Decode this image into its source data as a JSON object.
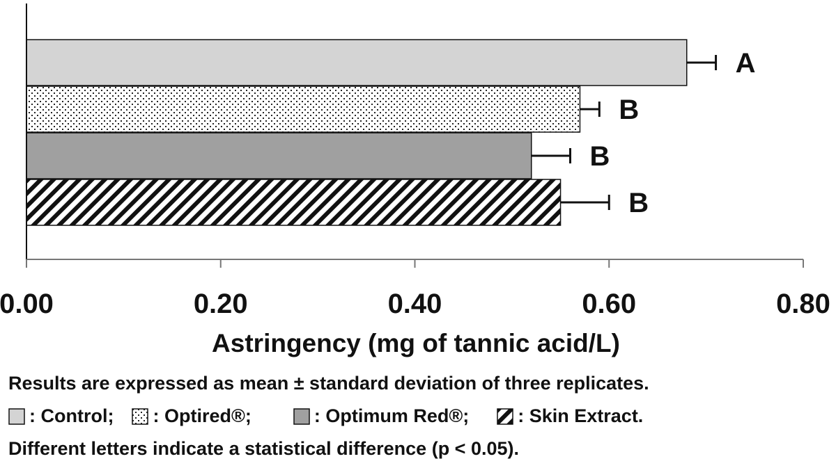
{
  "chart_data": {
    "type": "bar",
    "orientation": "horizontal",
    "categories": [
      "Control",
      "Optired®",
      "Optimum Red®",
      "Skin Extract."
    ],
    "values": [
      0.68,
      0.57,
      0.52,
      0.55
    ],
    "errors": [
      0.03,
      0.02,
      0.04,
      0.05
    ],
    "significance_letters": [
      "A",
      "B",
      "B",
      "B"
    ],
    "bar_fills": [
      "light-gray",
      "dotted",
      "gray",
      "diagonal-hatch"
    ],
    "colors": {
      "light": "#d4d4d4",
      "medium": "#a0a0a0",
      "outline": "#111111"
    },
    "xlabel": "Astringency  (mg of tannic acid/L)",
    "xlim": [
      0,
      0.8
    ],
    "xticks": [
      "0.00",
      "0.20",
      "0.40",
      "0.60",
      "0.80"
    ],
    "grid": false,
    "legend_position": "bottom"
  },
  "notes": {
    "top": "Results are expressed as mean ± standard deviation of three replicates.",
    "bottom": "Different letters indicate a statistical difference (p < 0.05)."
  },
  "legend": [
    {
      "label": ": Control;",
      "fill": "light-gray"
    },
    {
      "label": ": Optired®;",
      "fill": "dotted"
    },
    {
      "label": ": Optimum Red®;",
      "fill": "gray"
    },
    {
      "label": ": Skin Extract.",
      "fill": "diagonal-hatch"
    }
  ]
}
